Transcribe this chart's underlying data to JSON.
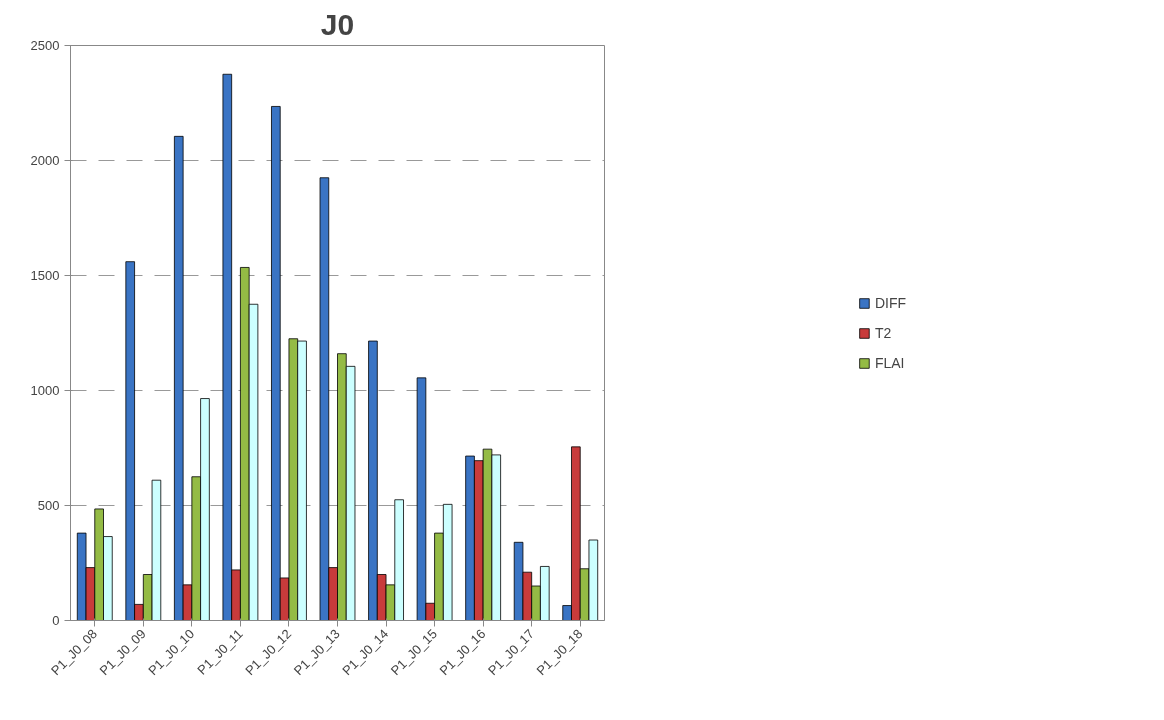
{
  "chart_data": {
    "type": "bar",
    "title": "J0",
    "categories": [
      "P1_J0_08",
      "P1_J0_09",
      "P1_J0_10",
      "P1_J0_11",
      "P1_J0_12",
      "P1_J0_13",
      "P1_J0_14",
      "P1_J0_15",
      "P1_J0_16",
      "P1_J0_17",
      "P1_J0_18"
    ],
    "series": [
      {
        "name": "DIFF",
        "color": "#3a74c4",
        "values": [
          380,
          1560,
          2105,
          2375,
          2235,
          1925,
          1215,
          1055,
          715,
          340,
          65
        ]
      },
      {
        "name": "T2",
        "color": "#c83b3b",
        "values": [
          230,
          70,
          155,
          220,
          185,
          230,
          200,
          75,
          695,
          210,
          755
        ]
      },
      {
        "name": "FLAI",
        "color": "#94bb45",
        "values": [
          485,
          200,
          625,
          1535,
          1225,
          1160,
          155,
          380,
          745,
          150,
          225
        ]
      },
      {
        "color": "#ccffff",
        "values": [
          365,
          610,
          965,
          1375,
          1215,
          1105,
          525,
          505,
          720,
          235,
          350
        ]
      }
    ],
    "ylim": [
      0,
      2500
    ],
    "yticks": [
      0,
      500,
      1000,
      1500,
      2000,
      2500
    ],
    "grid": "y",
    "legend": "right"
  }
}
